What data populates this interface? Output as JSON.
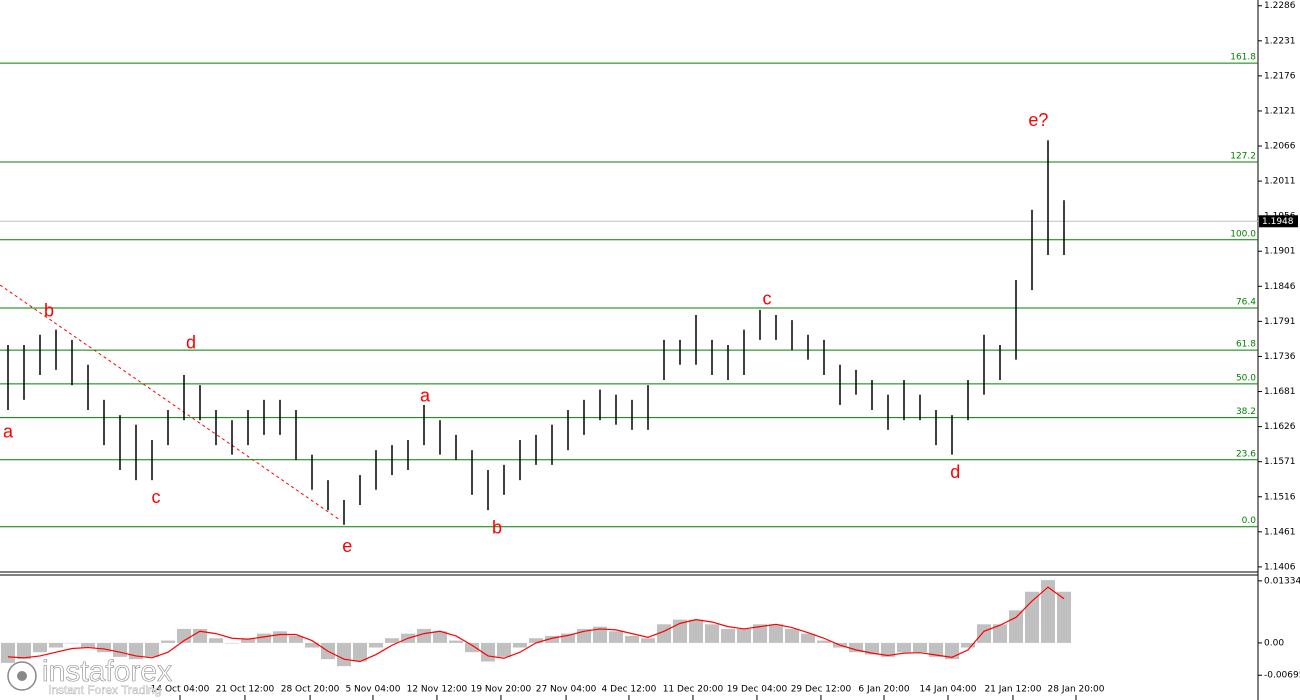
{
  "chart_data": [
    {
      "type": "ohlc",
      "xlim": [
        -0.5,
        78.125
      ],
      "ylim": [
        1.1398,
        1.2295
      ],
      "yticks": [
        1.2286,
        1.2231,
        1.2176,
        1.2121,
        1.2066,
        1.2011,
        1.1956,
        1.1901,
        1.1846,
        1.1791,
        1.1736,
        1.1681,
        1.1626,
        1.1571,
        1.1516,
        1.1461,
        1.1406
      ],
      "color": "#000000",
      "high": [
        1.1754,
        1.1754,
        1.177,
        1.1778,
        1.1762,
        1.1723,
        1.1668,
        1.1644,
        1.1629,
        1.1605,
        1.1652,
        1.1707,
        1.1691,
        1.1652,
        1.1636,
        1.1652,
        1.1668,
        1.1668,
        1.1652,
        1.1582,
        1.1542,
        1.1511,
        1.155,
        1.1589,
        1.1597,
        1.1605,
        1.166,
        1.1636,
        1.1613,
        1.1589,
        1.1558,
        1.1566,
        1.1605,
        1.1613,
        1.1629,
        1.1652,
        1.1668,
        1.1684,
        1.1676,
        1.1668,
        1.1691,
        1.1762,
        1.1762,
        1.1801,
        1.1762,
        1.1754,
        1.1778,
        1.1809,
        1.1801,
        1.1793,
        1.177,
        1.1762,
        1.1723,
        1.1715,
        1.1699,
        1.1676,
        1.1699,
        1.1676,
        1.1652,
        1.1644,
        1.1699,
        1.177,
        1.1754,
        1.1856,
        1.1966,
        1.2075,
        1.1981
      ],
      "low": [
        1.1652,
        1.1668,
        1.1707,
        1.1715,
        1.1691,
        1.1652,
        1.1597,
        1.1558,
        1.1542,
        1.1542,
        1.1597,
        1.1636,
        1.1636,
        1.1597,
        1.1582,
        1.1597,
        1.1613,
        1.1613,
        1.1574,
        1.1527,
        1.1495,
        1.1472,
        1.1503,
        1.1527,
        1.155,
        1.1558,
        1.1597,
        1.1582,
        1.1574,
        1.1519,
        1.1495,
        1.1519,
        1.1542,
        1.1566,
        1.1566,
        1.1589,
        1.1613,
        1.1636,
        1.1629,
        1.1621,
        1.1621,
        1.1699,
        1.1723,
        1.1723,
        1.1707,
        1.1699,
        1.1707,
        1.1762,
        1.1762,
        1.1746,
        1.1731,
        1.1707,
        1.166,
        1.1676,
        1.1652,
        1.1621,
        1.1636,
        1.1636,
        1.1597,
        1.1582,
        1.1636,
        1.1676,
        1.1699,
        1.1731,
        1.184,
        1.1895,
        1.1895
      ],
      "last_price": 1.1948,
      "fib_color": "#008000",
      "fib_levels": [
        {
          "price": 1.1469,
          "label": "0.0"
        },
        {
          "price": 1.1574,
          "label": "23.6"
        },
        {
          "price": 1.164,
          "label": "38.2"
        },
        {
          "price": 1.1693,
          "label": "50.0"
        },
        {
          "price": 1.1746,
          "label": "61.8"
        },
        {
          "price": 1.1812,
          "label": "76.4"
        },
        {
          "price": 1.1919,
          "label": "100.0"
        },
        {
          "price": 1.2041,
          "label": "127.2"
        },
        {
          "price": 1.2196,
          "label": "161.8"
        }
      ],
      "annotation_color": "#ff0000",
      "annotations": [
        {
          "text": "a",
          "x": 0,
          "y": 1.1616
        },
        {
          "text": "b",
          "x": 2.56,
          "y": 1.1806
        },
        {
          "text": "c",
          "x": 9.25,
          "y": 1.1514
        },
        {
          "text": "d",
          "x": 11.44,
          "y": 1.1756
        },
        {
          "text": "e",
          "x": 21.2,
          "y": 1.1437
        },
        {
          "text": "a",
          "x": 26.06,
          "y": 1.1673
        },
        {
          "text": "b",
          "x": 30.56,
          "y": 1.1466
        },
        {
          "text": "c",
          "x": 47.44,
          "y": 1.1825
        },
        {
          "text": "d",
          "x": 59.2,
          "y": 1.1553
        },
        {
          "text": "e?",
          "x": 64.4,
          "y": 1.2105
        }
      ]
    },
    {
      "type": "macd",
      "xlim": [
        -0.5,
        78.125
      ],
      "ylim": [
        -0.0112,
        0.0146
      ],
      "yticks": [
        0.01334,
        {
          "value": 0,
          "label": "0.00"
        },
        -0.00695
      ],
      "xticks": [
        {
          "value": 10.75,
          "label": "14 Oct 04:00"
        },
        {
          "value": 14.81,
          "label": "21 Oct 12:00"
        },
        {
          "value": 18.88,
          "label": "28 Oct 20:00"
        },
        {
          "value": 22.81,
          "label": "5 Nov 04:00"
        },
        {
          "value": 26.81,
          "label": "12 Nov 12:00"
        },
        {
          "value": 30.81,
          "label": "19 Nov 20:00"
        },
        {
          "value": 34.88,
          "label": "27 Nov 04:00"
        },
        {
          "value": 38.81,
          "label": "4 Dec 12:00"
        },
        {
          "value": 42.81,
          "label": "11 Dec 20:00"
        },
        {
          "value": 46.81,
          "label": "19 Dec 04:00"
        },
        {
          "value": 50.81,
          "label": "29 Dec 12:00"
        },
        {
          "value": 54.75,
          "label": "6 Jan 20:00"
        },
        {
          "value": 58.75,
          "label": "14 Jan 04:00"
        },
        {
          "value": 62.81,
          "label": "21 Jan 12:00"
        },
        {
          "value": 66.75,
          "label": "28 Jan 20:00"
        }
      ],
      "histogram_color": "#c0c0c0",
      "signal_color": "#ff0000",
      "histogram": [
        -0.0043,
        -0.0035,
        -0.002,
        -0.001,
        0.0,
        -0.001,
        -0.002,
        -0.003,
        -0.0035,
        -0.003,
        0.0005,
        0.003,
        0.003,
        0.001,
        0.0,
        0.001,
        0.002,
        0.0025,
        0.0015,
        -0.001,
        -0.0035,
        -0.005,
        -0.004,
        -0.001,
        0.001,
        0.002,
        0.003,
        0.0025,
        0.0005,
        -0.002,
        -0.004,
        -0.003,
        -0.001,
        0.001,
        0.0015,
        0.002,
        0.003,
        0.0035,
        0.0025,
        0.0015,
        0.001,
        0.004,
        0.005,
        0.005,
        0.004,
        0.003,
        0.003,
        0.004,
        0.004,
        0.003,
        0.002,
        0.0005,
        -0.001,
        -0.002,
        -0.0025,
        -0.003,
        -0.002,
        -0.002,
        -0.003,
        -0.0035,
        -0.001,
        0.004,
        0.004,
        0.007,
        0.011,
        0.0135,
        0.011
      ],
      "signal": [
        -0.003,
        -0.0032,
        -0.0028,
        -0.002,
        -0.0012,
        -0.001,
        -0.0013,
        -0.002,
        -0.0028,
        -0.0032,
        -0.002,
        0.0005,
        0.0025,
        0.002,
        0.001,
        0.0008,
        0.0013,
        0.0018,
        0.0018,
        0.0005,
        -0.0018,
        -0.0035,
        -0.004,
        -0.0025,
        -0.0005,
        0.001,
        0.002,
        0.0025,
        0.0015,
        -0.0005,
        -0.0028,
        -0.0033,
        -0.002,
        0.0,
        0.001,
        0.0016,
        0.0025,
        0.003,
        0.0028,
        0.002,
        0.0012,
        0.0025,
        0.0042,
        0.005,
        0.0045,
        0.0035,
        0.003,
        0.0035,
        0.004,
        0.0033,
        0.0022,
        0.001,
        -0.0005,
        -0.0015,
        -0.0022,
        -0.0027,
        -0.0022,
        -0.0021,
        -0.0026,
        -0.0031,
        -0.0015,
        0.0025,
        0.0038,
        0.0055,
        0.009,
        0.012,
        0.0095
      ]
    }
  ],
  "watermark": {
    "brand": "instaforex",
    "tagline": "Instant Forex Trading"
  }
}
